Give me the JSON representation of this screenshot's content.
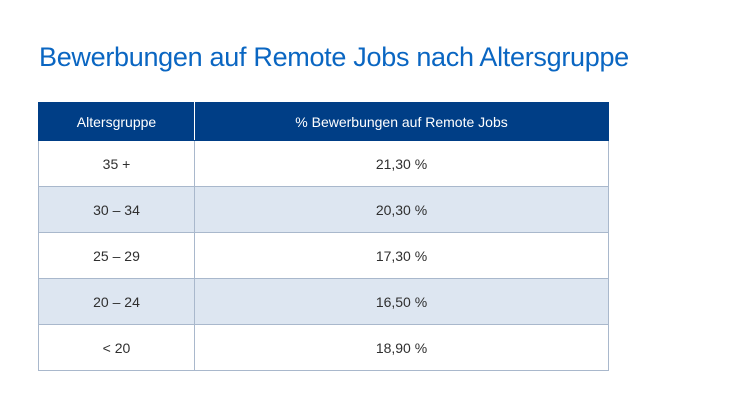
{
  "title": "Bewerbungen auf Remote Jobs nach Altersgruppe",
  "colors": {
    "title": "#0a66c2",
    "header_bg": "#003e86",
    "row_shade": "#dde6f1",
    "border": "#a9b8cc"
  },
  "chart_data": {
    "type": "table",
    "title": "Bewerbungen auf Remote Jobs nach Altersgruppe",
    "columns": [
      "Altersgruppe",
      "% Bewerbungen auf Remote Jobs"
    ],
    "rows": [
      [
        "35 +",
        "21,30 %"
      ],
      [
        "30 – 34",
        "20,30 %"
      ],
      [
        "25 – 29",
        "17,30 %"
      ],
      [
        "20 – 24",
        "16,50 %"
      ],
      [
        "< 20",
        "18,90 %"
      ]
    ],
    "values": [
      21.3,
      20.3,
      17.3,
      16.5,
      18.9
    ],
    "categories": [
      "35 +",
      "30 – 34",
      "25 – 29",
      "20 – 24",
      "< 20"
    ]
  }
}
